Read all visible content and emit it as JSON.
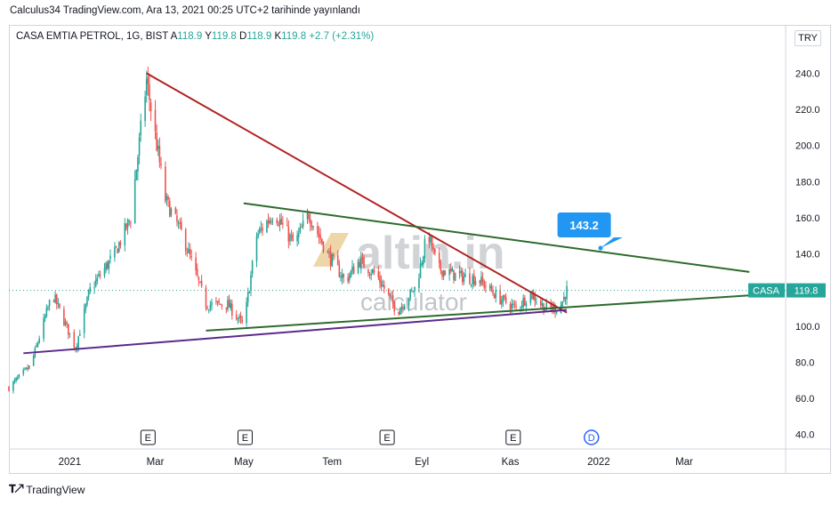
{
  "caption": "Calculus34 TradingView.com, Ara 13, 2021 00:25 UTC+2 tarihinde yayınlandı",
  "legend": {
    "symbol": "CASA EMTIA PETROL, 1G, BIST",
    "open_label": "A",
    "open": "118.9",
    "high_label": "Y",
    "high": "119.8",
    "low_label": "D",
    "low": "118.9",
    "close_label": "K",
    "close": "119.8",
    "change": "+2.7 (+2.31%)"
  },
  "currency": "TRY",
  "footer": {
    "brand": "TradingView"
  },
  "watermark": {
    "brand": "altin.in",
    "sub": "calculator"
  },
  "colors": {
    "up": "#26a69a",
    "down": "#ef5350",
    "red_line": "#b22222",
    "green_line": "#2e6b2e",
    "purple_line": "#5b2a8a",
    "price_tag": "#26a69a",
    "callout": "#2196f3"
  },
  "chart_data": {
    "type": "candlestick",
    "ylim": [
      32,
      252
    ],
    "y_ticks": [
      40,
      60,
      80,
      100,
      120,
      140,
      160,
      180,
      200,
      220,
      240
    ],
    "y_tick_labels": [
      "40.0",
      "60.0",
      "80.0",
      "100.0",
      "120.0",
      "140.0",
      "160.0",
      "180.0",
      "200.0",
      "220.0",
      "240.0"
    ],
    "x_domain": [
      "2020-11-20",
      "2022-05-10"
    ],
    "x_ticks": [
      {
        "label": "2021",
        "date": "2021-01-01"
      },
      {
        "label": "Mar",
        "date": "2021-03-01"
      },
      {
        "label": "May",
        "date": "2021-05-01"
      },
      {
        "label": "Tem",
        "date": "2021-07-01"
      },
      {
        "label": "Eyl",
        "date": "2021-09-01"
      },
      {
        "label": "Kas",
        "date": "2021-11-01"
      },
      {
        "label": "2022",
        "date": "2022-01-01"
      },
      {
        "label": "Mar",
        "date": "2022-03-01"
      }
    ],
    "events": [
      {
        "label": "E",
        "date": "2021-02-24"
      },
      {
        "label": "E",
        "date": "2021-05-02"
      },
      {
        "label": "E",
        "date": "2021-08-08"
      },
      {
        "label": "E",
        "date": "2021-11-03"
      },
      {
        "label": "D",
        "date": "2021-12-27"
      }
    ],
    "price_path": [
      {
        "date": "2020-11-20",
        "close": 66
      },
      {
        "date": "2020-12-05",
        "close": 78
      },
      {
        "date": "2020-12-20",
        "close": 118
      },
      {
        "date": "2021-01-05",
        "close": 88
      },
      {
        "date": "2021-01-15",
        "close": 120
      },
      {
        "date": "2021-02-01",
        "close": 140
      },
      {
        "date": "2021-02-12",
        "close": 160
      },
      {
        "date": "2021-02-23",
        "close": 236
      },
      {
        "date": "2021-03-08",
        "close": 170
      },
      {
        "date": "2021-03-20",
        "close": 150
      },
      {
        "date": "2021-04-05",
        "close": 112
      },
      {
        "date": "2021-04-20",
        "close": 112
      },
      {
        "date": "2021-05-01",
        "close": 100
      },
      {
        "date": "2021-05-10",
        "close": 150
      },
      {
        "date": "2021-05-22",
        "close": 163
      },
      {
        "date": "2021-06-05",
        "close": 145
      },
      {
        "date": "2021-06-15",
        "close": 162
      },
      {
        "date": "2021-06-28",
        "close": 140
      },
      {
        "date": "2021-07-10",
        "close": 125
      },
      {
        "date": "2021-07-20",
        "close": 136
      },
      {
        "date": "2021-08-01",
        "close": 128
      },
      {
        "date": "2021-08-15",
        "close": 108
      },
      {
        "date": "2021-08-28",
        "close": 122
      },
      {
        "date": "2021-09-05",
        "close": 152
      },
      {
        "date": "2021-09-12",
        "close": 132
      },
      {
        "date": "2021-09-25",
        "close": 128
      },
      {
        "date": "2021-10-10",
        "close": 126
      },
      {
        "date": "2021-10-25",
        "close": 115
      },
      {
        "date": "2021-11-05",
        "close": 110
      },
      {
        "date": "2021-11-15",
        "close": 118
      },
      {
        "date": "2021-11-25",
        "close": 110
      },
      {
        "date": "2021-12-05",
        "close": 110
      },
      {
        "date": "2021-12-10",
        "close": 119.8
      }
    ],
    "trendlines": [
      {
        "name": "red-resistance",
        "color": "red_line",
        "from": {
          "date": "2021-02-23",
          "y": 240
        },
        "to": {
          "date": "2021-12-10",
          "y": 107.5
        }
      },
      {
        "name": "green-resistance",
        "color": "green_line",
        "from": {
          "date": "2021-05-01",
          "y": 168
        },
        "to": {
          "date": "2022-04-15",
          "y": 130
        }
      },
      {
        "name": "green-support",
        "color": "green_line",
        "from": {
          "date": "2021-04-05",
          "y": 97.5
        },
        "to": {
          "date": "2022-04-15",
          "y": 117
        }
      },
      {
        "name": "purple-support",
        "color": "purple_line",
        "from": {
          "date": "2020-11-30",
          "y": 85
        },
        "to": {
          "date": "2021-12-10",
          "y": 109
        }
      }
    ],
    "callout": {
      "value": "143.2",
      "date": "2021-12-22",
      "y": 143.2
    },
    "last_price": {
      "symbol": "CASA",
      "value": "119.8",
      "y": 119.8
    }
  }
}
